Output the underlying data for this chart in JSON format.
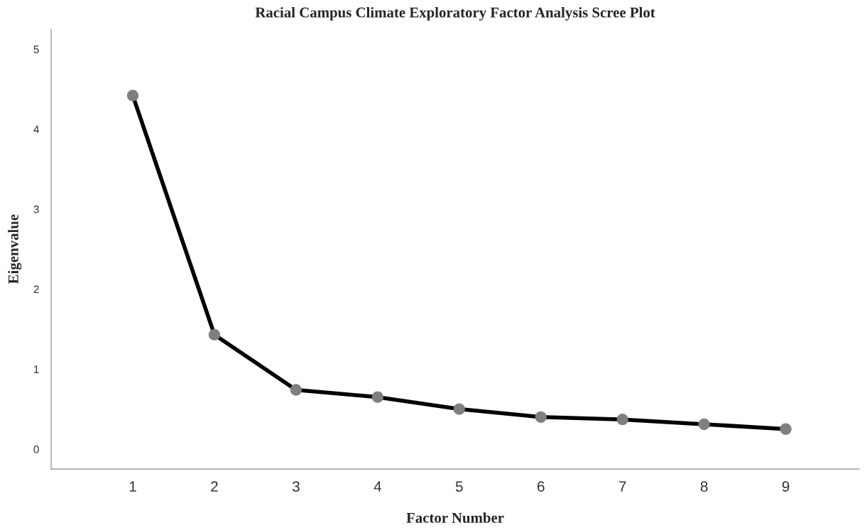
{
  "chart_data": {
    "type": "line",
    "title": "Racial Campus Climate Exploratory Factor Analysis Scree Plot",
    "xlabel": "Factor Number",
    "ylabel": "Eigenvalue",
    "x": [
      1,
      2,
      3,
      4,
      5,
      6,
      7,
      8,
      9
    ],
    "series": [
      {
        "color": "#000000",
        "values": [
          4.42,
          1.43,
          0.74,
          0.65,
          0.5,
          0.4,
          0.37,
          0.31,
          0.25
        ]
      }
    ],
    "xlim": [
      0,
      9.9
    ],
    "xticks": [
      1,
      2,
      3,
      4,
      5,
      6,
      7,
      8,
      9
    ],
    "ylim": [
      -0.25,
      5.25
    ],
    "yticks": [
      0,
      1,
      2,
      3,
      4,
      5
    ],
    "grid": false,
    "marker": "circle",
    "line_style": "solid"
  }
}
